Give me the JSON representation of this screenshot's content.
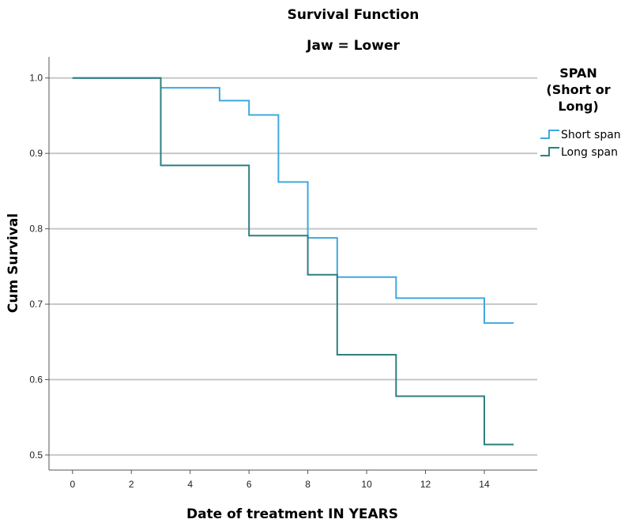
{
  "chart_data": {
    "type": "line",
    "subtype": "step",
    "title": "Survival Function",
    "subtitle": "Jaw = Lower",
    "xlabel": "Date of treatment IN YEARS",
    "ylabel": "Cum Survival",
    "xlim": [
      -0.8,
      15.8
    ],
    "ylim": [
      0.48,
      1.028
    ],
    "xticks": [
      0,
      2,
      4,
      6,
      8,
      10,
      12,
      14
    ],
    "xtick_labels": [
      "0",
      "2",
      "4",
      "6",
      "8",
      "10",
      "12",
      "14"
    ],
    "yticks": [
      0.5,
      0.6,
      0.7,
      0.8,
      0.9,
      1.0
    ],
    "ytick_labels": [
      "0.5",
      "0.6",
      "0.7",
      "0.8",
      "0.9",
      "1.0"
    ],
    "grid": "horizontal",
    "legend": {
      "title_lines": [
        "SPAN",
        "(Short or",
        "Long)"
      ],
      "position": "right"
    },
    "series": [
      {
        "name": "Short span",
        "color": "#3fa8e0",
        "x": [
          0,
          3,
          5,
          6,
          7,
          8,
          9,
          11,
          14,
          15
        ],
        "y": [
          1.0,
          0.987,
          0.97,
          0.951,
          0.862,
          0.788,
          0.736,
          0.708,
          0.675,
          0.675
        ]
      },
      {
        "name": "Long span",
        "color": "#2e7f80",
        "x": [
          0,
          3,
          6,
          8,
          9,
          11,
          14,
          15
        ],
        "y": [
          1.0,
          0.884,
          0.791,
          0.739,
          0.633,
          0.578,
          0.514,
          0.514
        ]
      }
    ]
  }
}
